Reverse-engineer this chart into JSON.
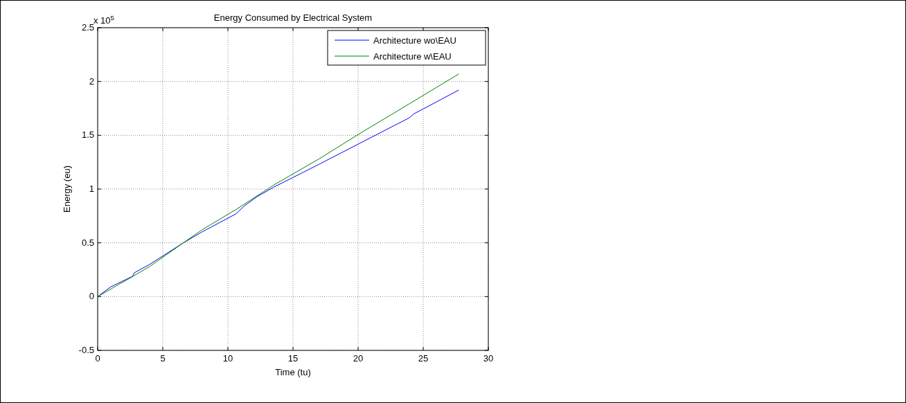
{
  "chart_data": {
    "type": "line",
    "title": "Energy Consumed by Electrical System",
    "xlabel": "Time (tu)",
    "ylabel": "Energy (eu)",
    "annotations": [
      "x 10$^{5}$"
    ],
    "xlim": [
      0,
      30
    ],
    "xticks": [
      0,
      5,
      10,
      15,
      20,
      25,
      30
    ],
    "ylim": [
      -0.5,
      2.5
    ],
    "yticks": [
      -0.5,
      0,
      0.5,
      1,
      1.5,
      2,
      2.5
    ],
    "grid": true,
    "legend": "top right",
    "line_style": "solid",
    "marker": "none",
    "series": [
      {
        "name": "Architecture wo\\EAU",
        "color": "#0000ff",
        "x": [
          0,
          1,
          2.7,
          2.8,
          4,
          6.58,
          8,
          10.63,
          11.23,
          12.25,
          13.56,
          17,
          20.04,
          23.9,
          24.3,
          27.73
        ],
        "values": [
          0,
          0.09,
          0.19,
          0.22,
          0.3,
          0.5,
          0.6,
          0.77,
          0.84,
          0.93,
          1.02,
          1.23,
          1.42,
          1.66,
          1.7,
          1.92
        ]
      },
      {
        "name": "Architecture w\\EAU",
        "color": "#008000",
        "x": [
          0,
          1,
          2.73,
          4,
          6.58,
          8,
          10.63,
          13.56,
          17,
          20.04,
          23.9,
          27.73
        ],
        "values": [
          0,
          0.07,
          0.19,
          0.28,
          0.5,
          0.62,
          0.81,
          1.04,
          1.28,
          1.51,
          1.79,
          2.07
        ]
      }
    ]
  }
}
